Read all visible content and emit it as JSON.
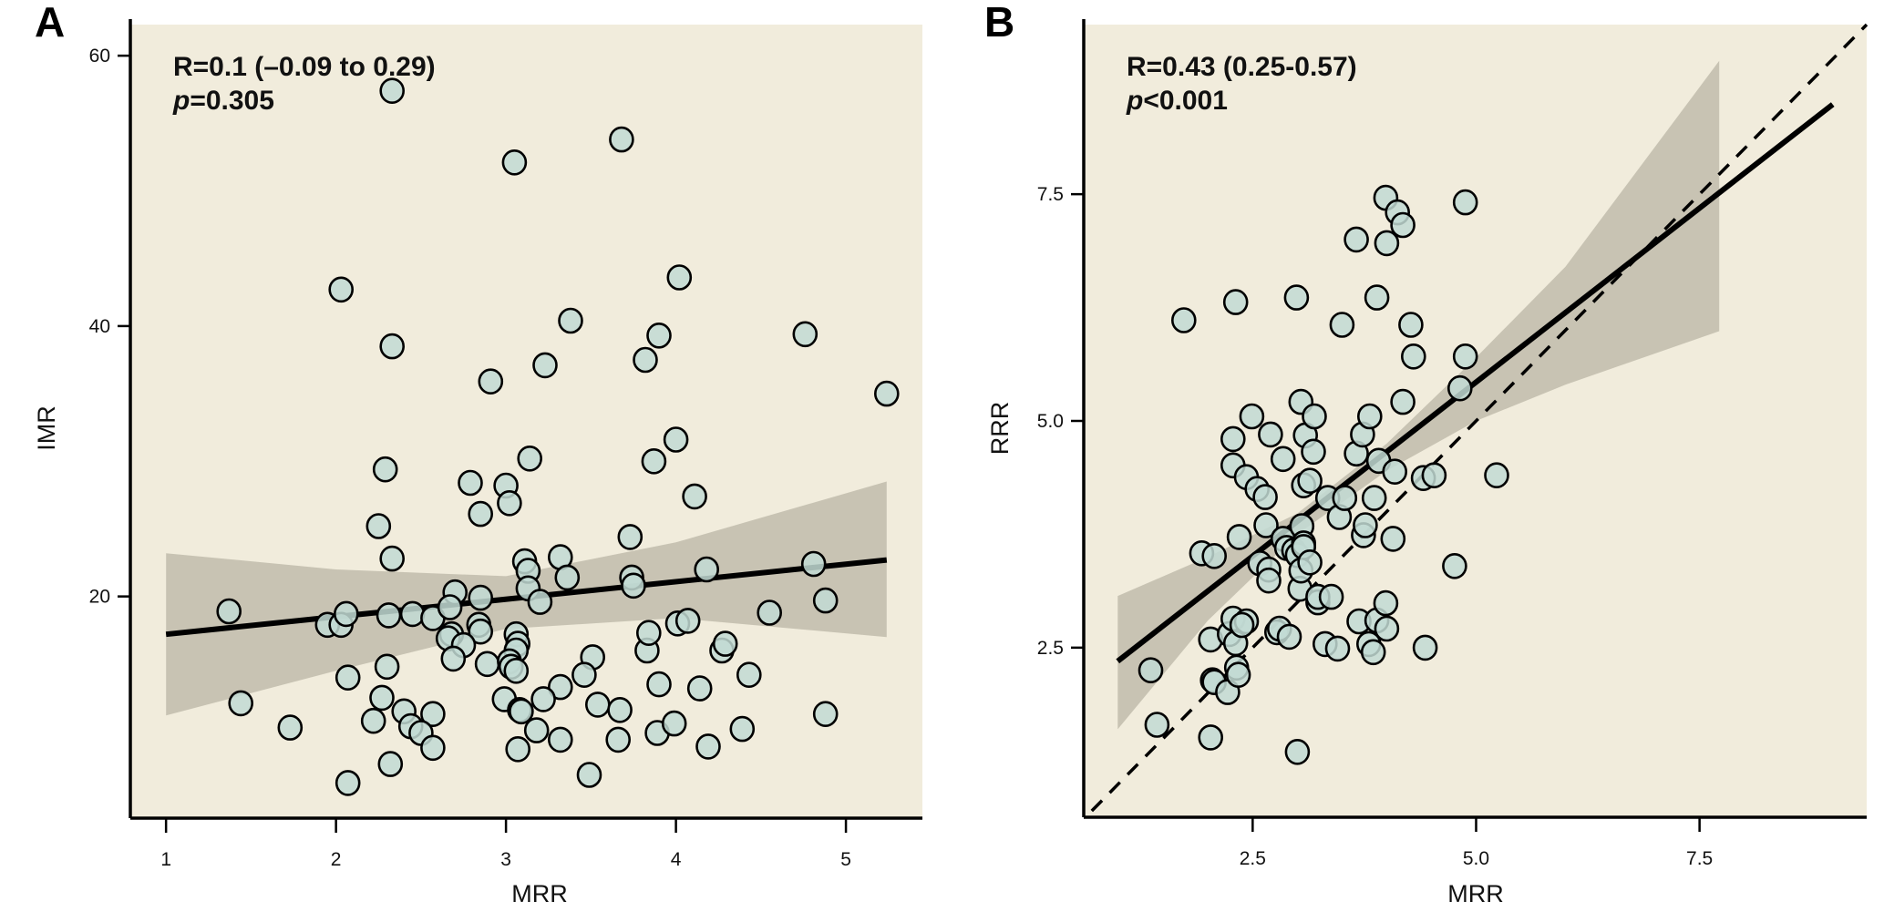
{
  "chart_data": [
    {
      "panel": "A",
      "type": "scatter",
      "title": "",
      "xlabel": "MRR",
      "ylabel": "IMR",
      "xlim": [
        0.79,
        5.45
      ],
      "ylim": [
        3.6,
        62.3
      ],
      "xticks": [
        1,
        2,
        3,
        4,
        5
      ],
      "xtick_labels": [
        "1",
        "2",
        "3",
        "4",
        "5"
      ],
      "yticks": [
        20,
        40,
        60
      ],
      "ytick_labels": [
        "20",
        "40",
        "60"
      ],
      "grid": false,
      "annotation": {
        "line1": "R=0.1 (–0.09 to 0.29)",
        "p_symbol": "p",
        "line2": "=0.305"
      },
      "regression": {
        "x": [
          1.0,
          5.24
        ],
        "y": [
          17.2,
          22.7
        ]
      },
      "confidence_band": {
        "x": [
          1.0,
          2.0,
          3.0,
          4.0,
          5.24
        ],
        "lower": [
          11.2,
          14.5,
          17.6,
          18.4,
          17.0
        ],
        "upper": [
          23.2,
          22.0,
          21.5,
          24.0,
          28.5
        ]
      },
      "points": [
        [
          2.33,
          57.4
        ],
        [
          3.05,
          52.1
        ],
        [
          3.68,
          53.8
        ],
        [
          2.03,
          42.7
        ],
        [
          4.02,
          43.6
        ],
        [
          2.33,
          38.5
        ],
        [
          3.38,
          40.4
        ],
        [
          3.9,
          39.3
        ],
        [
          4.76,
          39.4
        ],
        [
          5.24,
          35.0
        ],
        [
          2.91,
          35.9
        ],
        [
          3.23,
          37.1
        ],
        [
          3.82,
          37.5
        ],
        [
          2.29,
          29.4
        ],
        [
          3.14,
          30.2
        ],
        [
          3.87,
          30.0
        ],
        [
          4.0,
          31.6
        ],
        [
          2.79,
          28.4
        ],
        [
          3.0,
          28.2
        ],
        [
          2.85,
          26.1
        ],
        [
          3.02,
          26.9
        ],
        [
          4.11,
          27.4
        ],
        [
          2.25,
          25.2
        ],
        [
          2.33,
          22.8
        ],
        [
          3.73,
          24.4
        ],
        [
          3.11,
          22.6
        ],
        [
          3.32,
          22.9
        ],
        [
          3.13,
          21.9
        ],
        [
          3.36,
          21.4
        ],
        [
          3.74,
          21.4
        ],
        [
          3.75,
          20.8
        ],
        [
          4.18,
          22.0
        ],
        [
          4.81,
          22.4
        ],
        [
          3.13,
          20.6
        ],
        [
          3.2,
          19.6
        ],
        [
          2.7,
          20.3
        ],
        [
          2.85,
          19.9
        ],
        [
          1.37,
          18.9
        ],
        [
          1.95,
          17.9
        ],
        [
          2.03,
          17.9
        ],
        [
          2.06,
          18.7
        ],
        [
          2.31,
          18.6
        ],
        [
          2.45,
          18.7
        ],
        [
          2.57,
          18.4
        ],
        [
          2.67,
          19.2
        ],
        [
          2.68,
          17.2
        ],
        [
          2.66,
          16.9
        ],
        [
          2.84,
          17.9
        ],
        [
          2.85,
          17.4
        ],
        [
          2.75,
          16.4
        ],
        [
          3.06,
          17.2
        ],
        [
          3.07,
          16.5
        ],
        [
          3.06,
          16.0
        ],
        [
          2.69,
          15.4
        ],
        [
          2.89,
          15.0
        ],
        [
          3.02,
          15.2
        ],
        [
          3.03,
          14.8
        ],
        [
          3.06,
          14.5
        ],
        [
          3.51,
          15.5
        ],
        [
          3.83,
          16.0
        ],
        [
          3.84,
          17.3
        ],
        [
          4.01,
          18.0
        ],
        [
          4.07,
          18.2
        ],
        [
          4.27,
          16.0
        ],
        [
          4.29,
          16.5
        ],
        [
          4.55,
          18.8
        ],
        [
          4.88,
          19.7
        ],
        [
          2.3,
          14.8
        ],
        [
          2.07,
          14.0
        ],
        [
          3.46,
          14.2
        ],
        [
          3.32,
          13.3
        ],
        [
          3.9,
          13.5
        ],
        [
          4.14,
          13.2
        ],
        [
          4.43,
          14.2
        ],
        [
          2.27,
          12.5
        ],
        [
          1.44,
          12.1
        ],
        [
          2.99,
          12.4
        ],
        [
          3.22,
          12.4
        ],
        [
          3.54,
          12.0
        ],
        [
          3.67,
          11.6
        ],
        [
          2.4,
          11.5
        ],
        [
          2.57,
          11.3
        ],
        [
          3.08,
          11.6
        ],
        [
          3.09,
          11.5
        ],
        [
          2.22,
          10.8
        ],
        [
          2.44,
          10.4
        ],
        [
          2.5,
          9.9
        ],
        [
          1.73,
          10.3
        ],
        [
          3.18,
          10.1
        ],
        [
          3.32,
          9.4
        ],
        [
          3.66,
          9.4
        ],
        [
          3.89,
          9.9
        ],
        [
          3.99,
          10.6
        ],
        [
          4.39,
          10.2
        ],
        [
          4.88,
          11.3
        ],
        [
          2.57,
          8.8
        ],
        [
          3.07,
          8.7
        ],
        [
          4.19,
          8.9
        ],
        [
          2.32,
          7.6
        ],
        [
          3.49,
          6.8
        ],
        [
          2.07,
          6.2
        ]
      ]
    },
    {
      "panel": "B",
      "type": "scatter",
      "title": "",
      "xlabel": "MRR",
      "ylabel": "RRR",
      "xlim": [
        0.61,
        9.37
      ],
      "ylim": [
        0.63,
        9.37
      ],
      "xticks": [
        2.5,
        5.0,
        7.5
      ],
      "xtick_labels": [
        "2.5",
        "5.0",
        "7.5"
      ],
      "yticks": [
        2.5,
        5.0,
        7.5
      ],
      "ytick_labels": [
        "2.5",
        "5.0",
        "7.5"
      ],
      "grid": false,
      "annotation": {
        "line1": "R=0.43 (0.25-0.57)",
        "p_symbol": "p",
        "line2": "<0.001"
      },
      "regression": {
        "x": [
          0.99,
          8.99
        ],
        "y": [
          2.35,
          8.49
        ]
      },
      "identity_line": {
        "x": [
          0.7,
          9.37
        ],
        "y": [
          0.7,
          9.37
        ],
        "style": "dashed"
      },
      "confidence_band": {
        "x": [
          0.99,
          2.0,
          3.0,
          4.0,
          5.0,
          6.0,
          7.72
        ],
        "lower": [
          1.6,
          2.8,
          3.75,
          4.45,
          5.0,
          5.4,
          5.99
        ],
        "upper": [
          3.07,
          3.5,
          3.98,
          4.75,
          5.7,
          6.7,
          8.97
        ]
      },
      "points": [
        [
          1.36,
          2.25
        ],
        [
          1.43,
          1.65
        ],
        [
          1.73,
          6.11
        ],
        [
          2.31,
          6.31
        ],
        [
          1.93,
          3.54
        ],
        [
          2.07,
          3.51
        ],
        [
          2.03,
          2.59
        ],
        [
          2.05,
          2.14
        ],
        [
          2.07,
          2.12
        ],
        [
          2.03,
          1.51
        ],
        [
          2.22,
          2.01
        ],
        [
          2.24,
          2.65
        ],
        [
          2.28,
          2.82
        ],
        [
          2.31,
          2.55
        ],
        [
          2.32,
          2.28
        ],
        [
          2.34,
          2.2
        ],
        [
          2.43,
          2.79
        ],
        [
          2.38,
          2.75
        ],
        [
          2.28,
          4.8
        ],
        [
          2.28,
          4.51
        ],
        [
          2.35,
          3.72
        ],
        [
          2.43,
          4.38
        ],
        [
          2.49,
          5.05
        ],
        [
          2.55,
          4.25
        ],
        [
          2.58,
          3.43
        ],
        [
          2.64,
          4.16
        ],
        [
          2.65,
          3.85
        ],
        [
          2.68,
          3.36
        ],
        [
          2.68,
          3.24
        ],
        [
          2.7,
          4.85
        ],
        [
          2.77,
          2.67
        ],
        [
          2.8,
          2.71
        ],
        [
          2.84,
          4.58
        ],
        [
          2.84,
          3.7
        ],
        [
          2.88,
          3.6
        ],
        [
          2.91,
          2.62
        ],
        [
          2.96,
          3.57
        ],
        [
          2.99,
          6.36
        ],
        [
          3.0,
          3.52
        ],
        [
          3.0,
          1.35
        ],
        [
          3.03,
          3.15
        ],
        [
          3.04,
          3.35
        ],
        [
          3.04,
          5.21
        ],
        [
          3.05,
          3.84
        ],
        [
          3.07,
          3.65
        ],
        [
          3.07,
          3.61
        ],
        [
          3.07,
          4.29
        ],
        [
          3.09,
          4.84
        ],
        [
          3.14,
          4.34
        ],
        [
          3.14,
          3.44
        ],
        [
          3.18,
          4.66
        ],
        [
          3.19,
          5.05
        ],
        [
          3.23,
          3.0
        ],
        [
          3.23,
          3.06
        ],
        [
          3.31,
          2.54
        ],
        [
          3.38,
          3.06
        ],
        [
          3.34,
          4.15
        ],
        [
          3.45,
          2.49
        ],
        [
          3.47,
          3.94
        ],
        [
          3.53,
          4.15
        ],
        [
          3.5,
          6.06
        ],
        [
          3.66,
          7.0
        ],
        [
          3.66,
          4.64
        ],
        [
          3.69,
          2.79
        ],
        [
          3.73,
          4.85
        ],
        [
          3.74,
          3.74
        ],
        [
          3.76,
          3.85
        ],
        [
          3.81,
          5.05
        ],
        [
          3.8,
          2.54
        ],
        [
          3.85,
          2.45
        ],
        [
          3.86,
          4.15
        ],
        [
          3.89,
          6.36
        ],
        [
          3.89,
          2.8
        ],
        [
          3.91,
          4.56
        ],
        [
          3.99,
          2.99
        ],
        [
          4.0,
          2.71
        ],
        [
          3.99,
          7.46
        ],
        [
          4.0,
          6.96
        ],
        [
          4.07,
          3.7
        ],
        [
          4.09,
          4.44
        ],
        [
          4.12,
          7.3
        ],
        [
          4.18,
          7.16
        ],
        [
          4.18,
          5.21
        ],
        [
          4.27,
          6.06
        ],
        [
          4.3,
          5.71
        ],
        [
          4.41,
          4.37
        ],
        [
          4.43,
          2.5
        ],
        [
          4.53,
          4.4
        ],
        [
          4.76,
          3.4
        ],
        [
          4.82,
          5.36
        ],
        [
          4.88,
          7.41
        ],
        [
          4.88,
          5.71
        ],
        [
          5.23,
          4.4
        ]
      ]
    }
  ]
}
